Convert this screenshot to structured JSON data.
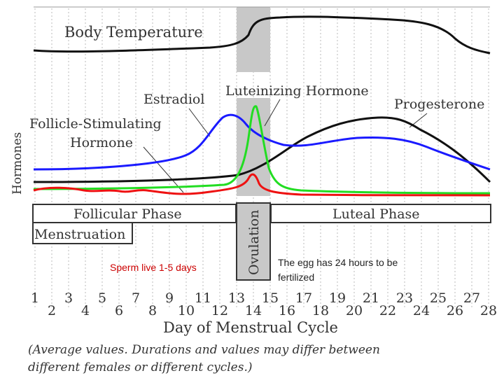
{
  "labels": {
    "body_temperature": "Body Temperature",
    "luteinizing_hormone": "Luteinizing Hormone",
    "estradiol": "Estradiol",
    "progesterone": "Progesterone",
    "fsh_line1": "Follicle-Stimulating",
    "fsh_line2": "Hormone",
    "hormones_axis": "Hormones",
    "follicular_phase": "Follicular Phase",
    "menstruation": "Menstruation",
    "ovulation": "Ovulation",
    "luteal_phase": "Luteal Phase",
    "sperm_note": "Sperm live 1-5 days",
    "egg_note_line1": "The egg has 24 hours to be",
    "egg_note_line2": "fertilized",
    "x_axis": "Day of Menstrual Cycle",
    "footnote_line1": "(Average values. Durations and values may differ between",
    "footnote_line2": "different females or different cycles.)"
  },
  "days": [
    "1",
    "2",
    "3",
    "4",
    "5",
    "6",
    "7",
    "8",
    "9",
    "10",
    "11",
    "12",
    "13",
    "14",
    "15",
    "16",
    "17",
    "18",
    "19",
    "20",
    "21",
    "22",
    "23",
    "24",
    "25",
    "26",
    "27",
    "28"
  ],
  "colors": {
    "estradiol": "#1a1aff",
    "luteinizing": "#22dd22",
    "progesterone": "#111111",
    "fsh": "#ee1111",
    "temperature": "#111111",
    "ovulation_band": "#c8c8c8",
    "note_red": "#cc0000"
  }
}
